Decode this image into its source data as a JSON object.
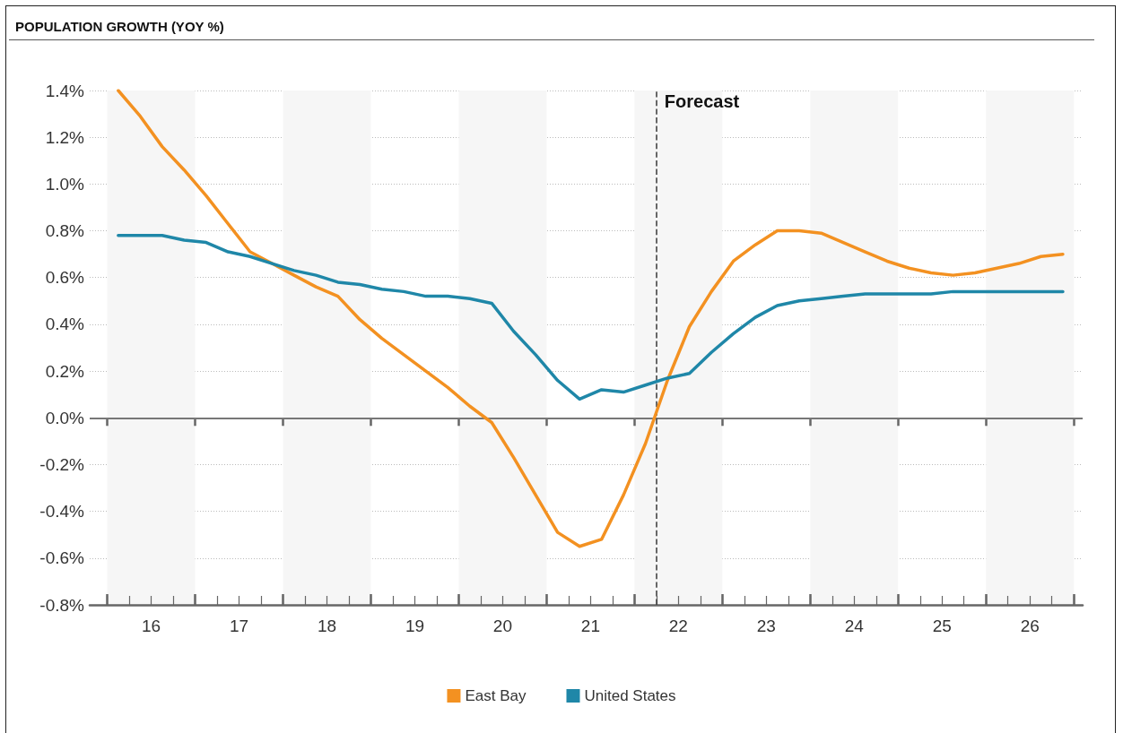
{
  "chart_data": {
    "type": "line",
    "title": "POPULATION GROWTH (YOY %)",
    "x": [
      16.125,
      16.375,
      16.625,
      16.875,
      17.125,
      17.375,
      17.625,
      17.875,
      18.125,
      18.375,
      18.625,
      18.875,
      19.125,
      19.375,
      19.625,
      19.875,
      20.125,
      20.375,
      20.625,
      20.875,
      21.125,
      21.375,
      21.625,
      21.875,
      22.125,
      22.375,
      22.625,
      22.875,
      23.125,
      23.375,
      23.625,
      23.875,
      24.125,
      24.375,
      24.625,
      24.875,
      25.125,
      25.375,
      25.625,
      25.875,
      26.125,
      26.375,
      26.625,
      26.875
    ],
    "series": [
      {
        "name": "East Bay",
        "color": "#f39121",
        "values": [
          1.4,
          1.29,
          1.16,
          1.06,
          0.95,
          0.83,
          0.71,
          0.66,
          0.61,
          0.56,
          0.52,
          0.42,
          0.34,
          0.27,
          0.2,
          0.13,
          0.05,
          -0.02,
          -0.17,
          -0.33,
          -0.49,
          -0.55,
          -0.52,
          -0.33,
          -0.11,
          0.16,
          0.39,
          0.54,
          0.67,
          0.74,
          0.8,
          0.8,
          0.79,
          0.75,
          0.71,
          0.67,
          0.64,
          0.62,
          0.61,
          0.62,
          0.64,
          0.66,
          0.69,
          0.7
        ]
      },
      {
        "name": "United States",
        "color": "#1f87a8",
        "values": [
          0.78,
          0.78,
          0.78,
          0.76,
          0.75,
          0.71,
          0.69,
          0.66,
          0.63,
          0.61,
          0.58,
          0.57,
          0.55,
          0.54,
          0.52,
          0.52,
          0.51,
          0.49,
          0.37,
          0.27,
          0.16,
          0.08,
          0.12,
          0.11,
          0.14,
          0.17,
          0.19,
          0.28,
          0.36,
          0.43,
          0.48,
          0.5,
          0.51,
          0.52,
          0.53,
          0.53,
          0.53,
          0.53,
          0.54,
          0.54,
          0.54,
          0.54,
          0.54,
          0.54
        ]
      }
    ],
    "xlim": [
      15.8,
      27.1
    ],
    "xticks": [
      {
        "value": 16,
        "label": null
      },
      {
        "value": 16.25,
        "label": null
      },
      {
        "value": 16.5,
        "label": "16"
      },
      {
        "value": 16.75,
        "label": null
      },
      {
        "value": 17,
        "label": null
      },
      {
        "value": 17.25,
        "label": null
      },
      {
        "value": 17.5,
        "label": "17"
      },
      {
        "value": 17.75,
        "label": null
      },
      {
        "value": 18,
        "label": null
      },
      {
        "value": 18.25,
        "label": null
      },
      {
        "value": 18.5,
        "label": "18"
      },
      {
        "value": 18.75,
        "label": null
      },
      {
        "value": 19,
        "label": null
      },
      {
        "value": 19.25,
        "label": null
      },
      {
        "value": 19.5,
        "label": "19"
      },
      {
        "value": 19.75,
        "label": null
      },
      {
        "value": 20,
        "label": null
      },
      {
        "value": 20.25,
        "label": null
      },
      {
        "value": 20.5,
        "label": "20"
      },
      {
        "value": 20.75,
        "label": null
      },
      {
        "value": 21,
        "label": null
      },
      {
        "value": 21.25,
        "label": null
      },
      {
        "value": 21.5,
        "label": "21"
      },
      {
        "value": 21.75,
        "label": null
      },
      {
        "value": 22,
        "label": null
      },
      {
        "value": 22.25,
        "label": null
      },
      {
        "value": 22.5,
        "label": "22"
      },
      {
        "value": 22.75,
        "label": null
      },
      {
        "value": 23,
        "label": null
      },
      {
        "value": 23.25,
        "label": null
      },
      {
        "value": 23.5,
        "label": "23"
      },
      {
        "value": 23.75,
        "label": null
      },
      {
        "value": 24,
        "label": null
      },
      {
        "value": 24.25,
        "label": null
      },
      {
        "value": 24.5,
        "label": "24"
      },
      {
        "value": 24.75,
        "label": null
      },
      {
        "value": 25,
        "label": null
      },
      {
        "value": 25.25,
        "label": null
      },
      {
        "value": 25.5,
        "label": "25"
      },
      {
        "value": 25.75,
        "label": null
      },
      {
        "value": 26,
        "label": null
      },
      {
        "value": 26.25,
        "label": null
      },
      {
        "value": 26.5,
        "label": "26"
      },
      {
        "value": 26.75,
        "label": null
      },
      {
        "value": 27,
        "label": null
      }
    ],
    "ylim": [
      -0.8,
      1.4
    ],
    "yticks": [
      {
        "value": -0.8,
        "label": "-0.8%"
      },
      {
        "value": -0.6,
        "label": "-0.6%"
      },
      {
        "value": -0.4,
        "label": "-0.4%"
      },
      {
        "value": -0.2,
        "label": "-0.2%"
      },
      {
        "value": 0,
        "label": "0.0%"
      },
      {
        "value": 0.2,
        "label": "0.2%"
      },
      {
        "value": 0.4,
        "label": "0.4%"
      },
      {
        "value": 0.6,
        "label": "0.6%"
      },
      {
        "value": 0.8,
        "label": "0.8%"
      },
      {
        "value": 1.0,
        "label": "1.0%"
      },
      {
        "value": 1.2,
        "label": "1.2%"
      },
      {
        "value": 1.4,
        "label": "1.4%"
      }
    ],
    "grid": "y",
    "legend": "bottom",
    "marker": "none",
    "line_style": "solid",
    "ref_lines": [
      {
        "axis": "y",
        "value": 0,
        "label": null,
        "color": "#777777",
        "line_style": "solid"
      },
      {
        "axis": "x",
        "value": 22.25,
        "label": "Forecast",
        "color": "#444444",
        "line_style": "dashed"
      }
    ],
    "bands": [
      {
        "axis": "x",
        "from": 16,
        "to": 17,
        "label": null,
        "color": "#f6f6f6"
      },
      {
        "axis": "x",
        "from": 18,
        "to": 19,
        "label": null,
        "color": "#f6f6f6"
      },
      {
        "axis": "x",
        "from": 20,
        "to": 21,
        "label": null,
        "color": "#f6f6f6"
      },
      {
        "axis": "x",
        "from": 22,
        "to": 23,
        "label": null,
        "color": "#f6f6f6"
      },
      {
        "axis": "x",
        "from": 24,
        "to": 25,
        "label": null,
        "color": "#f6f6f6"
      },
      {
        "axis": "x",
        "from": 26,
        "to": 27,
        "label": null,
        "color": "#f6f6f6"
      }
    ]
  }
}
